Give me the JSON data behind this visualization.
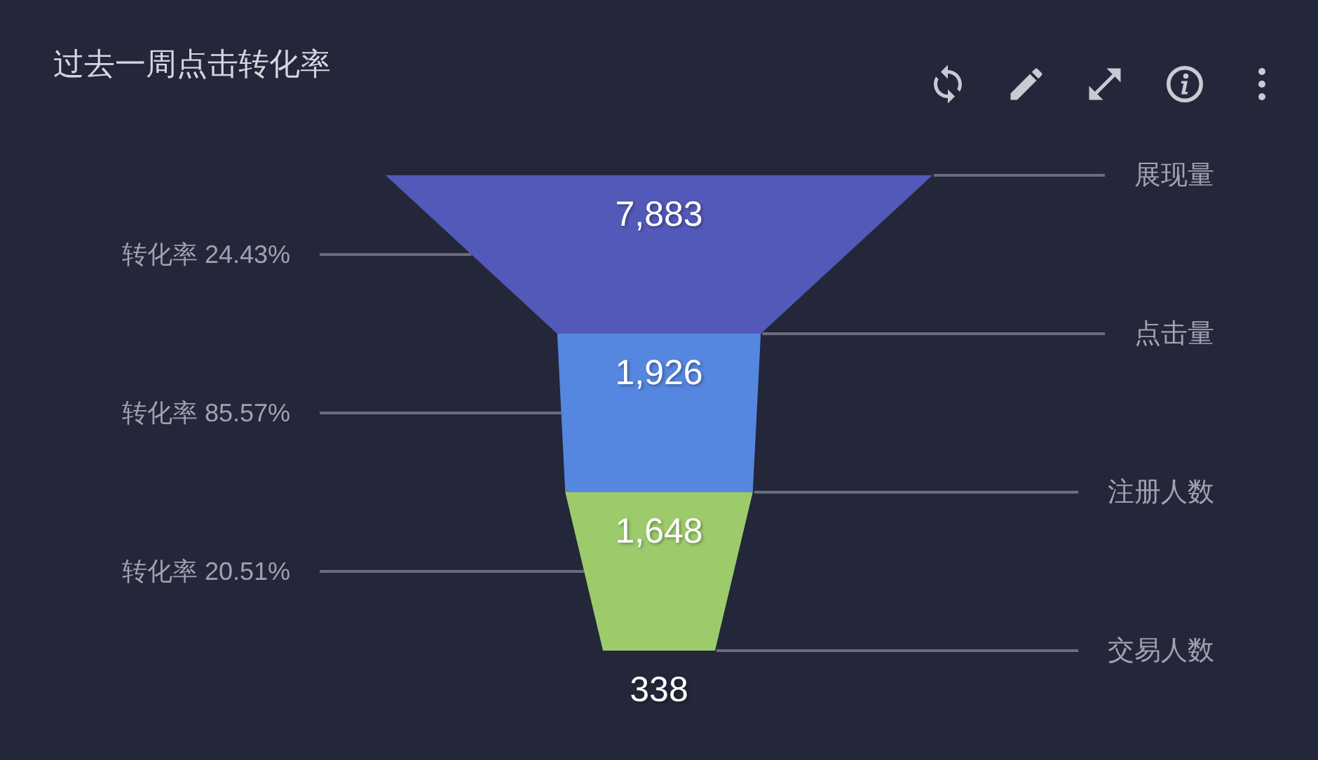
{
  "chart_data": {
    "type": "other",
    "title": "过去一周点击转化率",
    "categories": [
      "展现量",
      "点击量",
      "注册人数",
      "交易人数"
    ],
    "values": [
      7883,
      1926,
      1648,
      338
    ],
    "value_labels": [
      "7,883",
      "1,926",
      "1,648",
      "338"
    ],
    "colors": [
      "#5359b8",
      "#5586e0",
      "#9dcb6c",
      null
    ],
    "annotations": [
      "转化率 24.43%",
      "转化率 85.57%",
      "转化率 20.51%"
    ]
  }
}
